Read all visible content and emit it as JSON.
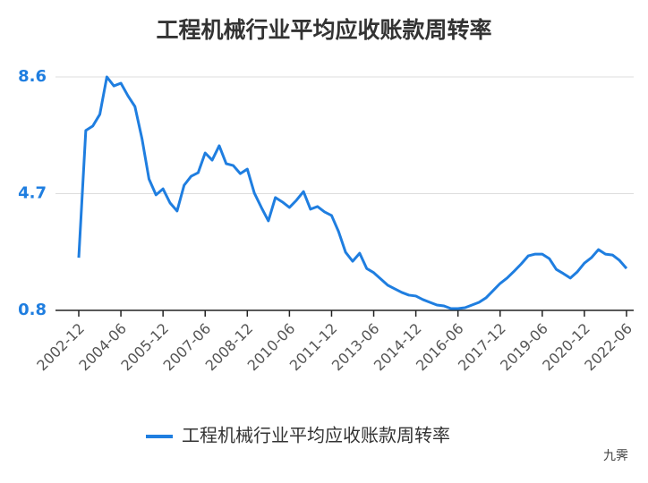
{
  "chart_data": {
    "type": "line",
    "title": "工程机械行业平均应收账款周转率",
    "categories": [
      "2002-12",
      null,
      null,
      null,
      null,
      null,
      "2004-06",
      null,
      null,
      null,
      null,
      null,
      "2005-12",
      null,
      null,
      null,
      null,
      null,
      "2007-06",
      null,
      null,
      null,
      null,
      null,
      "2008-12",
      null,
      null,
      null,
      null,
      null,
      "2010-06",
      null,
      null,
      null,
      null,
      null,
      "2011-12",
      null,
      null,
      null,
      null,
      null,
      "2013-06",
      null,
      null,
      null,
      null,
      null,
      "2014-12",
      null,
      null,
      null,
      null,
      null,
      "2016-06",
      null,
      null,
      null,
      null,
      null,
      "2017-12",
      null,
      null,
      null,
      null,
      null,
      "2019-06",
      null,
      null,
      null,
      null,
      null,
      "2020-12",
      null,
      null,
      null,
      null,
      null,
      "2022-06"
    ],
    "series": [
      {
        "name": "工程机械行业平均应收账款周转率",
        "color": "#1f7ee0",
        "values": [
          2.56,
          6.81,
          6.96,
          7.35,
          8.6,
          8.3,
          8.39,
          7.97,
          7.61,
          6.54,
          5.19,
          4.66,
          4.86,
          4.39,
          4.12,
          4.98,
          5.28,
          5.4,
          6.06,
          5.82,
          6.3,
          5.7,
          5.64,
          5.37,
          5.52,
          4.72,
          4.24,
          3.79,
          4.57,
          4.42,
          4.24,
          4.48,
          4.77,
          4.18,
          4.27,
          4.09,
          3.97,
          3.43,
          2.74,
          2.44,
          2.71,
          2.2,
          2.06,
          1.85,
          1.64,
          1.52,
          1.4,
          1.31,
          1.28,
          1.16,
          1.07,
          0.98,
          0.95,
          0.86,
          0.86,
          0.89,
          0.98,
          1.07,
          1.22,
          1.46,
          1.7,
          1.88,
          2.11,
          2.35,
          2.62,
          2.68,
          2.68,
          2.53,
          2.17,
          2.03,
          1.88,
          2.09,
          2.38,
          2.56,
          2.83,
          2.68,
          2.65,
          2.47,
          2.2
        ]
      }
    ],
    "ylim": [
      0.8,
      8.6
    ],
    "yticks": [
      0.8,
      4.7,
      8.6
    ],
    "grid": true,
    "legend": "bottom"
  },
  "watermark": "九霁"
}
